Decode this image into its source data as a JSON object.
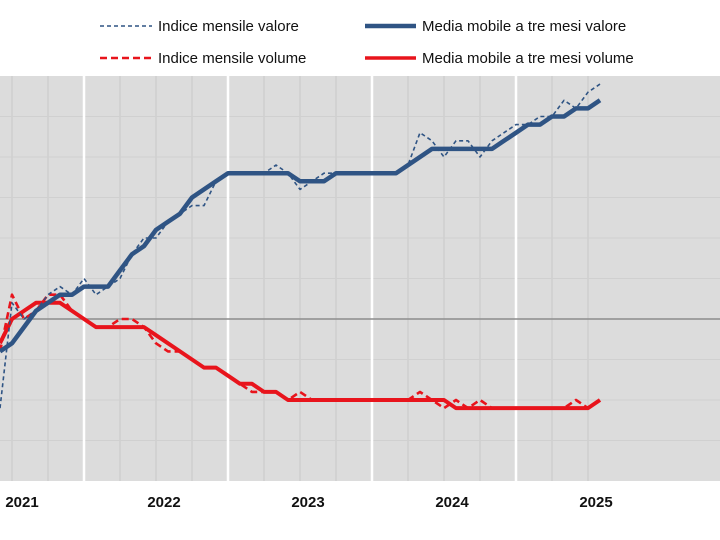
{
  "chart_data": {
    "type": "line",
    "title": "",
    "xlabel": "",
    "ylabel": "",
    "x_tick_labels": [
      "2021",
      "2022",
      "2023",
      "2024",
      "2025"
    ],
    "y_tick_labels": [],
    "grid": true,
    "legend_position": "top",
    "x_start": "2020-12",
    "x_end": "2025-11",
    "series": [
      {
        "name": "Indice mensile valore",
        "style": "dashed-thin",
        "color": "#2f5484",
        "values": [
          89,
          102,
          100,
          101,
          103,
          104,
          103,
          105,
          103,
          104,
          105,
          108,
          110,
          110,
          112,
          113,
          114,
          114,
          117,
          118,
          118,
          118,
          118,
          119,
          118,
          116,
          117,
          118,
          118,
          118,
          118,
          118,
          118,
          118,
          119,
          123,
          122,
          120,
          122,
          122,
          120,
          122,
          123,
          124,
          124,
          125,
          125,
          127,
          126,
          128,
          129
        ]
      },
      {
        "name": "Media mobile a tre mesi valore",
        "style": "solid-thick",
        "color": "#2f5484",
        "values": [
          96,
          97,
          99,
          101,
          102,
          103,
          103,
          104,
          104,
          104,
          106,
          108,
          109,
          111,
          112,
          113,
          115,
          116,
          117,
          118,
          118,
          118,
          118,
          118,
          118,
          117,
          117,
          117,
          118,
          118,
          118,
          118,
          118,
          118,
          119,
          120,
          121,
          121,
          121,
          121,
          121,
          121,
          122,
          123,
          124,
          124,
          125,
          125,
          126,
          126,
          127
        ]
      },
      {
        "name": "Indice mensile volume",
        "style": "dashed-thick",
        "color": "#e8141c",
        "values": [
          96,
          103,
          100,
          101,
          103,
          103,
          101,
          100,
          99,
          99,
          100,
          100,
          99,
          97,
          96,
          96,
          95,
          94,
          94,
          93,
          92,
          91,
          91,
          91,
          90,
          91,
          90,
          90,
          90,
          90,
          90,
          90,
          90,
          90,
          90,
          91,
          90,
          89,
          90,
          89,
          90,
          89,
          89,
          89,
          89,
          89,
          89,
          89,
          90,
          89,
          90
        ]
      },
      {
        "name": "Media mobile a tre mesi volume",
        "style": "solid-thick",
        "color": "#e8141c",
        "values": [
          97,
          100,
          101,
          102,
          102,
          102,
          101,
          100,
          99,
          99,
          99,
          99,
          99,
          98,
          97,
          96,
          95,
          94,
          94,
          93,
          92,
          92,
          91,
          91,
          90,
          90,
          90,
          90,
          90,
          90,
          90,
          90,
          90,
          90,
          90,
          90,
          90,
          90,
          89,
          89,
          89,
          89,
          89,
          89,
          89,
          89,
          89,
          89,
          89,
          89,
          90
        ]
      }
    ],
    "ylim": [
      80,
      130
    ]
  },
  "legend": {
    "items": [
      {
        "label": "Indice mensile valore"
      },
      {
        "label": "Media mobile a tre mesi valore"
      },
      {
        "label": "Indice mensile volume"
      },
      {
        "label": "Media mobile a tre mesi volume"
      }
    ]
  },
  "colors": {
    "valore": "#2f5484",
    "volume": "#e8141c",
    "plot_background": "#dcdcdc",
    "baseline": "#8c8c8c"
  }
}
